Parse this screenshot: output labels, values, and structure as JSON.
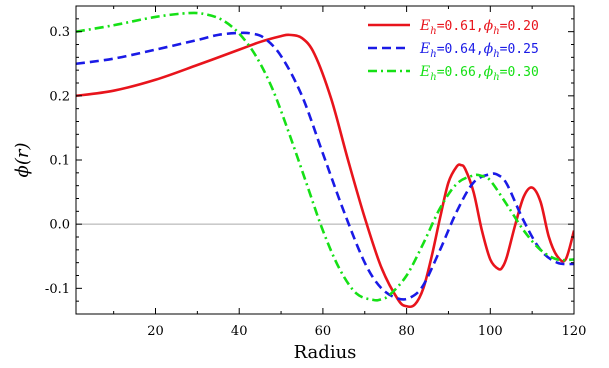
{
  "chart_data": {
    "type": "line",
    "xlabel": "Radius",
    "ylabel": "ϕ(r)",
    "xlim": [
      1,
      120
    ],
    "ylim": [
      -0.14,
      0.34
    ],
    "xticks": [
      20,
      40,
      60,
      80,
      100,
      120
    ],
    "yticks": [
      -0.1,
      0.0,
      0.1,
      0.2,
      0.3
    ],
    "ytick_labels": [
      "-0.1",
      "0.0",
      "0.1",
      "0.2",
      "0.3"
    ],
    "grid": false,
    "zero_line": true,
    "legend_position": "top-right",
    "series": [
      {
        "name": "E_h=0.61, ϕ_h=0.20",
        "legend": {
          "e": "E",
          "e_sub": "h",
          "e_val": "=0.61,",
          "p": "ϕ",
          "p_sub": "h",
          "p_val": "=0.20"
        },
        "color": "#e8141c",
        "dash": "solid",
        "x": [
          1,
          10,
          20,
          30,
          40,
          45,
          50,
          52,
          55,
          58,
          62,
          66,
          70,
          74,
          78,
          80,
          82,
          84,
          86,
          88,
          90,
          92,
          93,
          94,
          96,
          98,
          100,
          102,
          103,
          104,
          106,
          108,
          110,
          112,
          114,
          116,
          118,
          120
        ],
        "y": [
          0.2,
          0.208,
          0.225,
          0.248,
          0.272,
          0.284,
          0.293,
          0.295,
          0.29,
          0.265,
          0.195,
          0.1,
          0.01,
          -0.068,
          -0.118,
          -0.128,
          -0.125,
          -0.1,
          -0.05,
          0.01,
          0.065,
          0.09,
          0.092,
          0.086,
          0.05,
          -0.01,
          -0.055,
          -0.07,
          -0.066,
          -0.05,
          0.0,
          0.043,
          0.057,
          0.035,
          -0.02,
          -0.05,
          -0.055,
          -0.01
        ]
      },
      {
        "name": "E_h=0.64, ϕ_h=0.25",
        "legend": {
          "e": "E",
          "e_sub": "h",
          "e_val": "=0.64,",
          "p": "ϕ",
          "p_sub": "h",
          "p_val": "=0.25"
        },
        "color": "#1a1ae6",
        "dash": "dashed",
        "x": [
          1,
          10,
          20,
          30,
          35,
          40,
          43,
          46,
          50,
          55,
          60,
          65,
          70,
          74,
          78,
          81,
          84,
          88,
          92,
          96,
          100,
          102,
          104,
          108,
          112,
          116,
          120
        ],
        "y": [
          0.25,
          0.258,
          0.272,
          0.287,
          0.295,
          0.298,
          0.297,
          0.29,
          0.262,
          0.2,
          0.11,
          0.02,
          -0.06,
          -0.1,
          -0.116,
          -0.114,
          -0.095,
          -0.04,
          0.02,
          0.065,
          0.078,
          0.076,
          0.062,
          0.005,
          -0.04,
          -0.06,
          -0.062
        ]
      },
      {
        "name": "E_h=0.66, ϕ_h=0.30",
        "legend": {
          "e": "E",
          "e_sub": "h",
          "e_val": "=0.66,",
          "p": "ϕ",
          "p_sub": "h",
          "p_val": "=0.30"
        },
        "color": "#16e016",
        "dash": "dashdot",
        "x": [
          1,
          10,
          20,
          28,
          32,
          36,
          40,
          44,
          48,
          52,
          56,
          60,
          64,
          68,
          72,
          74,
          76,
          80,
          84,
          88,
          92,
          96,
          98,
          100,
          104,
          108,
          112,
          116,
          120
        ],
        "y": [
          0.3,
          0.31,
          0.323,
          0.329,
          0.327,
          0.318,
          0.297,
          0.262,
          0.21,
          0.14,
          0.065,
          -0.01,
          -0.07,
          -0.108,
          -0.118,
          -0.117,
          -0.11,
          -0.08,
          -0.03,
          0.025,
          0.063,
          0.076,
          0.075,
          0.068,
          0.03,
          -0.01,
          -0.04,
          -0.055,
          -0.055
        ]
      }
    ]
  }
}
